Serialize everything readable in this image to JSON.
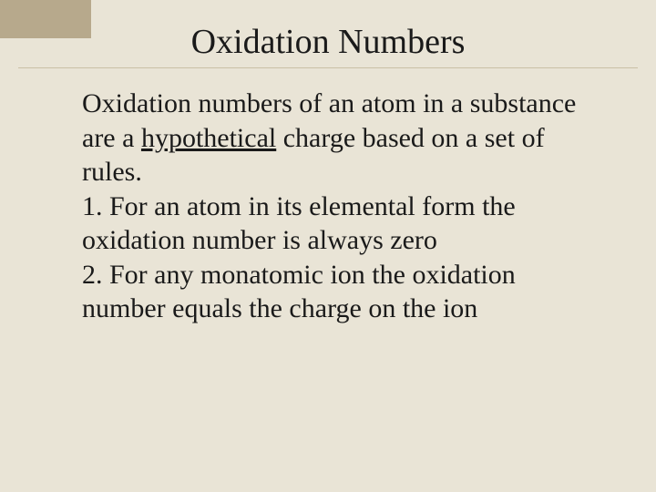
{
  "slide": {
    "background_color": "#e9e4d6",
    "corner_tab_color": "#b7a98c",
    "divider_color": "#c9bfa6",
    "text_color": "#1a1a1a",
    "title": "Oxidation Numbers",
    "title_fontsize": 38,
    "body_fontsize": 30,
    "body": {
      "intro_pre": "Oxidation numbers of an atom in a substance are a ",
      "intro_underlined": "hypothetical",
      "intro_post": " charge based on a set of rules.",
      "rule1": "1. For an atom in its elemental form the oxidation number is always zero",
      "rule2": "2. For any monatomic ion the oxidation number equals the charge on the ion"
    }
  }
}
